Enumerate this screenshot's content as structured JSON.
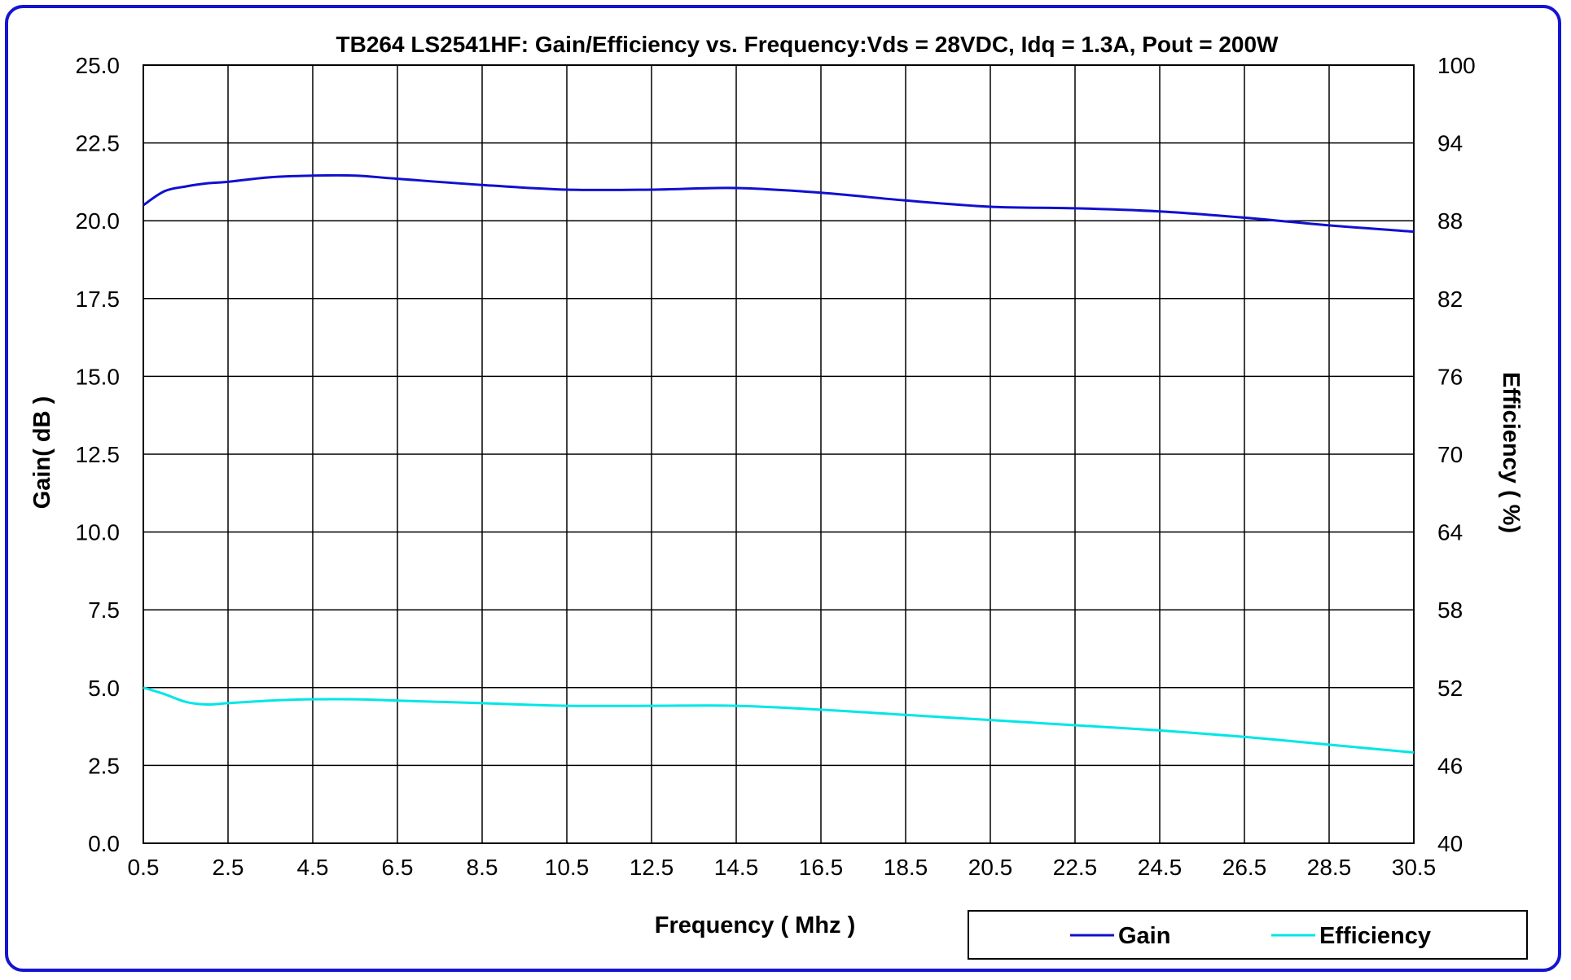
{
  "chart_data": {
    "type": "line",
    "title": "TB264 LS2541HF: Gain/Efficiency vs. Frequency:Vds = 28VDC, Idq =  1.3A,  Pout = 200W",
    "xlabel": "Frequency ( Mhz )",
    "ylabel_left": "Gain( dB )",
    "ylabel_right": "Efficiency ( %)",
    "xlim": [
      0.5,
      30.5
    ],
    "ylim_left": [
      0,
      25
    ],
    "ylim_right": [
      40,
      100
    ],
    "grid": true,
    "legend_position": "bottom-right",
    "x_ticks": [
      "0.5",
      "2.5",
      "4.5",
      "6.5",
      "8.5",
      "10.5",
      "12.5",
      "14.5",
      "16.5",
      "18.5",
      "20.5",
      "22.5",
      "24.5",
      "26.5",
      "28.5",
      "30.5"
    ],
    "y_left_ticks": [
      "0.0",
      "2.5",
      "5.0",
      "7.5",
      "10.0",
      "12.5",
      "15.0",
      "17.5",
      "20.0",
      "22.5",
      "25.0"
    ],
    "y_right_ticks": [
      "40",
      "46",
      "52",
      "58",
      "64",
      "70",
      "76",
      "82",
      "88",
      "94",
      "100"
    ],
    "series": [
      {
        "name": "Gain",
        "axis": "left",
        "color": "#1010d0",
        "x": [
          0.5,
          1,
          1.5,
          2,
          2.5,
          3.5,
          4.5,
          5.5,
          6.5,
          8.5,
          10.5,
          12.5,
          14.5,
          16.5,
          18.5,
          20.5,
          22.5,
          24.5,
          26.5,
          28.5,
          30.5
        ],
        "values": [
          20.5,
          20.95,
          21.1,
          21.2,
          21.25,
          21.4,
          21.45,
          21.45,
          21.35,
          21.15,
          21.0,
          21.0,
          21.05,
          20.9,
          20.65,
          20.45,
          20.4,
          20.3,
          20.1,
          19.85,
          19.65
        ]
      },
      {
        "name": "Efficiency",
        "axis": "right",
        "color": "#00e6e6",
        "x": [
          0.5,
          1,
          1.5,
          2,
          2.5,
          3.5,
          4.5,
          5.5,
          6.5,
          8.5,
          10.5,
          12.5,
          14.5,
          16.5,
          18.5,
          20.5,
          22.5,
          24.5,
          26.5,
          28.5,
          30.5
        ],
        "values": [
          52.0,
          51.5,
          50.9,
          50.7,
          50.8,
          51.0,
          51.1,
          51.1,
          51.0,
          50.8,
          50.6,
          50.6,
          50.6,
          50.3,
          49.9,
          49.5,
          49.1,
          48.7,
          48.2,
          47.6,
          47.0
        ]
      }
    ]
  }
}
